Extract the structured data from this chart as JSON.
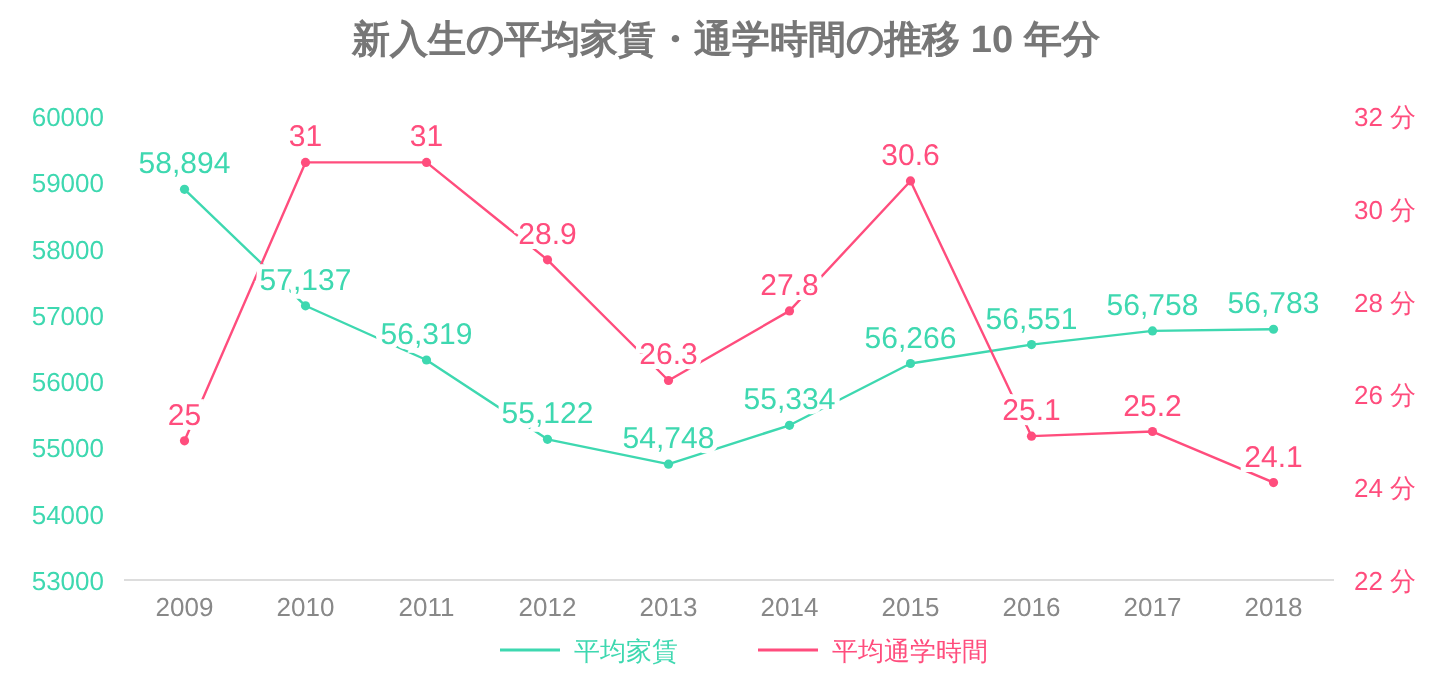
{
  "chart_data": {
    "type": "line",
    "title": "新入生の平均家賃・通学時間の推移 10 年分",
    "categories": [
      "2009",
      "2010",
      "2011",
      "2012",
      "2013",
      "2014",
      "2015",
      "2016",
      "2017",
      "2018"
    ],
    "series": [
      {
        "name": "平均家賃",
        "color": "#3ed8b0",
        "values": [
          58894,
          57137,
          56319,
          55122,
          54748,
          55334,
          56266,
          56551,
          56758,
          56783
        ],
        "value_labels": [
          "58,894",
          "57,137",
          "56,319",
          "55,122",
          "54,748",
          "55,334",
          "56,266",
          "56,551",
          "56,758",
          "56,783"
        ]
      },
      {
        "name": "平均通学時間",
        "color": "#ff4d7d",
        "axis": "y2",
        "values": [
          25,
          31,
          31,
          28.9,
          26.3,
          27.8,
          30.6,
          25.1,
          25.2,
          24.1
        ]
      }
    ],
    "ylim": [
      53000,
      60000
    ],
    "yticks": [
      53000,
      54000,
      55000,
      56000,
      57000,
      58000,
      59000,
      60000
    ],
    "y2lim": [
      22,
      32
    ],
    "y2ticks": [
      {
        "value": 22,
        "label": "22 分"
      },
      {
        "value": 24,
        "label": "24 分"
      },
      {
        "value": 26,
        "label": "26 分"
      },
      {
        "value": 28,
        "label": "28 分"
      },
      {
        "value": 30,
        "label": "30 分"
      },
      {
        "value": 32,
        "label": "32 分"
      }
    ],
    "data_labels": true,
    "marker": "circle",
    "legend": "bottom",
    "grid": false
  }
}
